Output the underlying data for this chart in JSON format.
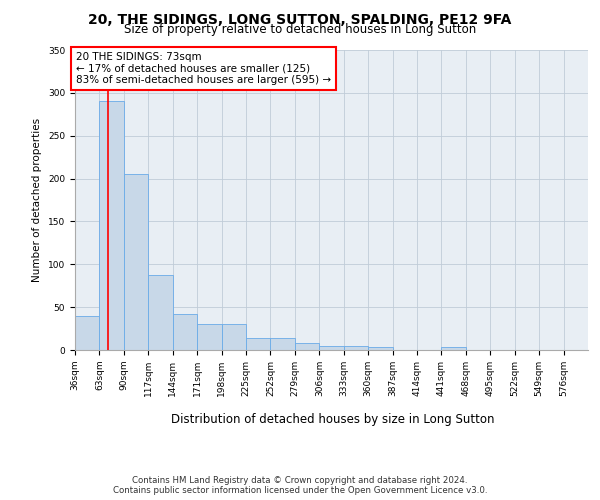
{
  "title1": "20, THE SIDINGS, LONG SUTTON, SPALDING, PE12 9FA",
  "title2": "Size of property relative to detached houses in Long Sutton",
  "xlabel": "Distribution of detached houses by size in Long Sutton",
  "ylabel": "Number of detached properties",
  "footer": "Contains HM Land Registry data © Crown copyright and database right 2024.\nContains public sector information licensed under the Open Government Licence v3.0.",
  "bin_labels": [
    "36sqm",
    "63sqm",
    "90sqm",
    "117sqm",
    "144sqm",
    "171sqm",
    "198sqm",
    "225sqm",
    "252sqm",
    "279sqm",
    "306sqm",
    "333sqm",
    "360sqm",
    "387sqm",
    "414sqm",
    "441sqm",
    "468sqm",
    "495sqm",
    "522sqm",
    "549sqm",
    "576sqm"
  ],
  "bin_starts": [
    36,
    63,
    90,
    117,
    144,
    171,
    198,
    225,
    252,
    279,
    306,
    333,
    360,
    387,
    414,
    441,
    468,
    495,
    522,
    549,
    576
  ],
  "bar_heights": [
    40,
    290,
    205,
    88,
    42,
    30,
    30,
    14,
    14,
    8,
    5,
    5,
    3,
    0,
    0,
    3,
    0,
    0,
    0,
    0,
    0
  ],
  "bar_color": "#c8d8e8",
  "bar_edge_color": "#6aabe8",
  "grid_color": "#c0ccd8",
  "bg_color": "#e8eef4",
  "red_line_x": 73,
  "annotation_text": "20 THE SIDINGS: 73sqm\n← 17% of detached houses are smaller (125)\n83% of semi-detached houses are larger (595) →",
  "ylim": [
    0,
    350
  ],
  "yticks": [
    0,
    50,
    100,
    150,
    200,
    250,
    300,
    350
  ],
  "title1_fontsize": 10,
  "title2_fontsize": 8.5,
  "annotation_fontsize": 7.5,
  "ylabel_fontsize": 7.5,
  "xlabel_fontsize": 8.5,
  "tick_fontsize": 6.5,
  "footer_fontsize": 6.2
}
